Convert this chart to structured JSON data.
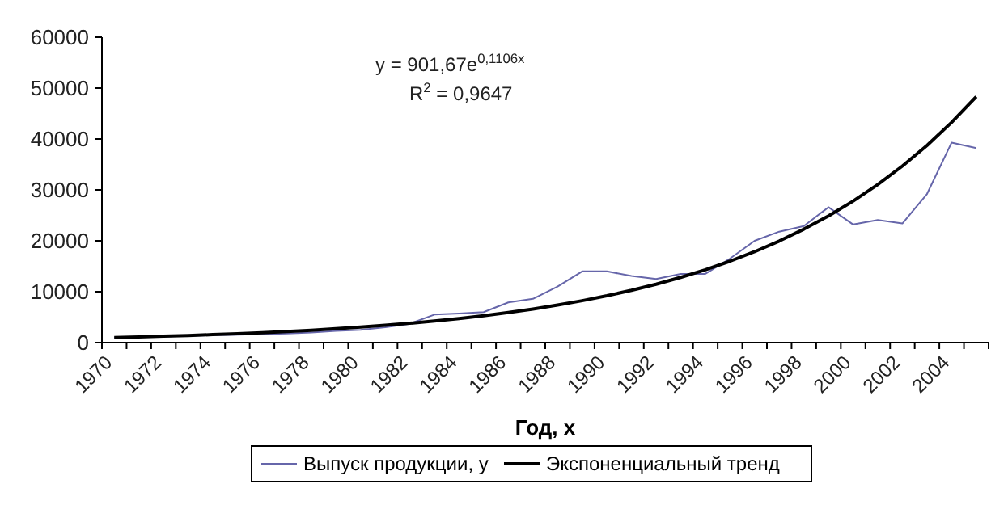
{
  "chart_data": {
    "type": "line",
    "xlabel": "Год, x",
    "categories": [
      "1970",
      null,
      "1972",
      null,
      "1974",
      null,
      "1976",
      null,
      "1978",
      null,
      "1980",
      null,
      "1982",
      null,
      "1984",
      null,
      "1986",
      null,
      "1988",
      null,
      "1990",
      null,
      "1992",
      null,
      "1994",
      null,
      "1996",
      null,
      "1998",
      null,
      "2000",
      null,
      "2002",
      null,
      "2004",
      null
    ],
    "series": [
      {
        "name": "Выпуск продукции, y",
        "color": "#6666aa",
        "values": [
          1000,
          1100,
          1200,
          1350,
          1450,
          1550,
          1650,
          1800,
          2000,
          2300,
          2500,
          3000,
          3700,
          5500,
          5700,
          6000,
          7900,
          8600,
          11000,
          14000,
          14000,
          13100,
          12500,
          13500,
          13500,
          16500,
          20000,
          21800,
          22900,
          26600,
          23200,
          24100,
          23400,
          29200,
          39300,
          38200
        ]
      },
      {
        "name": "Экспоненциальный тренд",
        "color": "#000000",
        "values": [
          1007,
          1125,
          1256,
          1403,
          1568,
          1751,
          1956,
          2184,
          2440,
          2725,
          3044,
          3400,
          3797,
          4241,
          4737,
          5291,
          5910,
          6601,
          7374,
          8236,
          9199,
          10275,
          11476,
          12818,
          14317,
          15992,
          17862,
          19951,
          22284,
          24890,
          27801,
          31052,
          34684,
          38740,
          43270,
          48330
        ]
      }
    ],
    "ylim": [
      0,
      60000
    ],
    "yticks": [
      0,
      10000,
      20000,
      30000,
      40000,
      50000,
      60000
    ],
    "grid": false,
    "legend": "bottom",
    "marker": "none",
    "line_style": "solid",
    "annotations": [
      "y = 901,67e$^{0,1106x}$",
      "R$^{2}$ = 0,9647"
    ]
  }
}
